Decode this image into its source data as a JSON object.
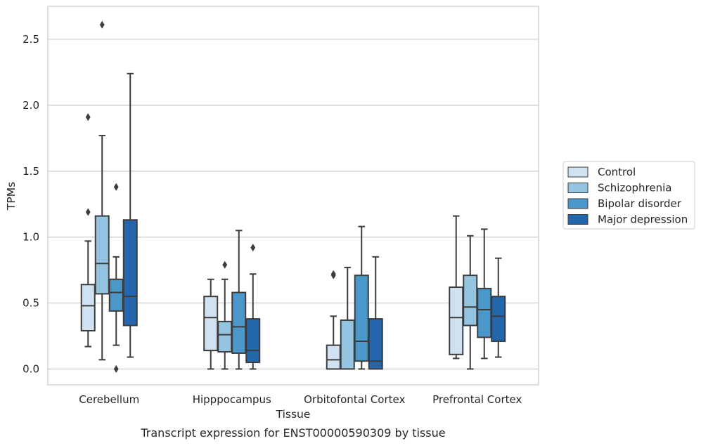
{
  "chart_data": {
    "type": "boxplot",
    "caption": "Transcript expression for ENST00000590309 by tissue",
    "xlabel": "Tissue",
    "ylabel": "TPMs",
    "ylim": [
      -0.12,
      2.75
    ],
    "yticks": [
      0.0,
      0.5,
      1.0,
      1.5,
      2.0,
      2.5
    ],
    "ytick_labels": [
      "0.0",
      "0.5",
      "1.0",
      "1.5",
      "2.0",
      "2.5"
    ],
    "grid": "horizontal",
    "legend_position": "outside-right",
    "categories": [
      "Cerebellum",
      "Hipppocampus",
      "Orbitofontal Cortex",
      "Prefrontal Cortex"
    ],
    "series": [
      {
        "name": "Control",
        "color": "#d0e1f2",
        "boxes": [
          {
            "whislo": 0.17,
            "q1": 0.29,
            "med": 0.48,
            "q3": 0.64,
            "whishi": 0.97,
            "fliers": [
              1.19,
              1.91
            ]
          },
          {
            "whislo": 0.0,
            "q1": 0.14,
            "med": 0.39,
            "q3": 0.55,
            "whishi": 0.68,
            "fliers": []
          },
          {
            "whislo": 0.0,
            "q1": 0.0,
            "med": 0.07,
            "q3": 0.18,
            "whishi": 0.4,
            "fliers": [
              0.71,
              0.72
            ]
          },
          {
            "whislo": 0.08,
            "q1": 0.11,
            "med": 0.39,
            "q3": 0.62,
            "whishi": 1.16,
            "fliers": []
          }
        ]
      },
      {
        "name": "Schizophrenia",
        "color": "#94c4df",
        "boxes": [
          {
            "whislo": 0.07,
            "q1": 0.57,
            "med": 0.8,
            "q3": 1.16,
            "whishi": 1.77,
            "fliers": [
              2.61
            ]
          },
          {
            "whislo": 0.0,
            "q1": 0.13,
            "med": 0.26,
            "q3": 0.36,
            "whishi": 0.68,
            "fliers": [
              0.79
            ]
          },
          {
            "whislo": 0.0,
            "q1": 0.0,
            "med": 0.0,
            "q3": 0.37,
            "whishi": 0.77,
            "fliers": []
          },
          {
            "whislo": 0.0,
            "q1": 0.33,
            "med": 0.47,
            "q3": 0.71,
            "whishi": 1.01,
            "fliers": []
          }
        ]
      },
      {
        "name": "Bipolar disorder",
        "color": "#4a98c9",
        "boxes": [
          {
            "whislo": 0.18,
            "q1": 0.44,
            "med": 0.58,
            "q3": 0.68,
            "whishi": 0.85,
            "fliers": [
              1.38,
              0.0
            ]
          },
          {
            "whislo": 0.0,
            "q1": 0.12,
            "med": 0.32,
            "q3": 0.58,
            "whishi": 1.05,
            "fliers": []
          },
          {
            "whislo": 0.0,
            "q1": 0.06,
            "med": 0.21,
            "q3": 0.71,
            "whishi": 1.08,
            "fliers": []
          },
          {
            "whislo": 0.08,
            "q1": 0.24,
            "med": 0.45,
            "q3": 0.61,
            "whishi": 1.06,
            "fliers": []
          }
        ]
      },
      {
        "name": "Major depression",
        "color": "#2366ab",
        "boxes": [
          {
            "whislo": 0.09,
            "q1": 0.33,
            "med": 0.55,
            "q3": 1.13,
            "whishi": 2.24,
            "fliers": []
          },
          {
            "whislo": 0.0,
            "q1": 0.05,
            "med": 0.14,
            "q3": 0.38,
            "whishi": 0.72,
            "fliers": [
              0.92
            ]
          },
          {
            "whislo": 0.0,
            "q1": 0.0,
            "med": 0.06,
            "q3": 0.38,
            "whishi": 0.85,
            "fliers": []
          },
          {
            "whislo": 0.09,
            "q1": 0.21,
            "med": 0.4,
            "q3": 0.55,
            "whishi": 0.84,
            "fliers": []
          }
        ]
      }
    ]
  }
}
